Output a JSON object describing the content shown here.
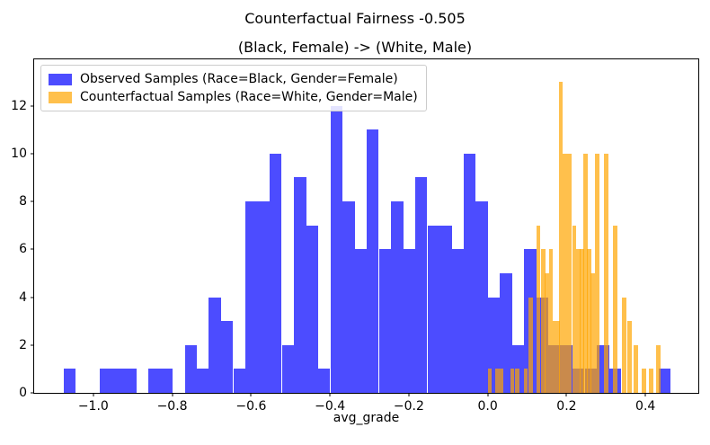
{
  "chart_data": {
    "type": "histogram",
    "title": "Counterfactual Fairness -0.505",
    "axes_title": "(Black, Female) -> (White, Male)",
    "xlabel": "avg_grade",
    "ylabel": "",
    "grid": false,
    "legend_position": "upper left",
    "xlim": [
      -1.15,
      0.534
    ],
    "ylim": [
      0,
      13.94
    ],
    "xticks": [
      {
        "value": -1.0,
        "label": "−1.0"
      },
      {
        "value": -0.8,
        "label": "−0.8"
      },
      {
        "value": -0.6,
        "label": "−0.6"
      },
      {
        "value": -0.4,
        "label": "−0.4"
      },
      {
        "value": -0.2,
        "label": "−0.2"
      },
      {
        "value": 0.0,
        "label": "0.0"
      },
      {
        "value": 0.2,
        "label": "0.2"
      },
      {
        "value": 0.4,
        "label": "0.4"
      }
    ],
    "yticks": [
      {
        "value": 0,
        "label": "0"
      },
      {
        "value": 2,
        "label": "2"
      },
      {
        "value": 4,
        "label": "4"
      },
      {
        "value": 6,
        "label": "6"
      },
      {
        "value": 8,
        "label": "8"
      },
      {
        "value": 10,
        "label": "10"
      },
      {
        "value": 12,
        "label": "12"
      }
    ],
    "series": [
      {
        "name": "Observed Samples (Race=Black, Gender=Female)",
        "color": "#0000FF",
        "alpha": 0.7,
        "css_fill": "#4C4CFF",
        "legend_swatch": "#4C4CFF",
        "bin_width": 0.0307,
        "bars": [
          [
            -1.075,
            1
          ],
          [
            -0.983,
            1
          ],
          [
            -0.952,
            1
          ],
          [
            -0.921,
            1
          ],
          [
            -0.86,
            1
          ],
          [
            -0.829,
            1
          ],
          [
            -0.768,
            2
          ],
          [
            -0.737,
            1
          ],
          [
            -0.707,
            4
          ],
          [
            -0.676,
            3
          ],
          [
            -0.645,
            1
          ],
          [
            -0.614,
            8
          ],
          [
            -0.584,
            8
          ],
          [
            -0.553,
            10
          ],
          [
            -0.522,
            2
          ],
          [
            -0.491,
            9
          ],
          [
            -0.461,
            7
          ],
          [
            -0.43,
            1
          ],
          [
            -0.399,
            12
          ],
          [
            -0.368,
            8
          ],
          [
            -0.338,
            6
          ],
          [
            -0.307,
            11
          ],
          [
            -0.276,
            6
          ],
          [
            -0.245,
            8
          ],
          [
            -0.215,
            6
          ],
          [
            -0.184,
            9
          ],
          [
            -0.153,
            7
          ],
          [
            -0.122,
            7
          ],
          [
            -0.092,
            6
          ],
          [
            -0.061,
            10
          ],
          [
            -0.03,
            8
          ],
          [
            0.001,
            4
          ],
          [
            0.031,
            5
          ],
          [
            0.062,
            2
          ],
          [
            0.093,
            6
          ],
          [
            0.123,
            4
          ],
          [
            0.154,
            2
          ],
          [
            0.185,
            2
          ],
          [
            0.215,
            1
          ],
          [
            0.246,
            1
          ],
          [
            0.277,
            2
          ],
          [
            0.307,
            1
          ],
          [
            0.433,
            1
          ]
        ]
      },
      {
        "name": "Counterfactual Samples (Race=White, Gender=Male)",
        "color": "#FFA500",
        "alpha": 0.7,
        "css_fill": "rgba(255,165,0,0.7)",
        "legend_swatch": "#FFC04C",
        "bin_width": 0.0107,
        "bars": [
          [
            0.0,
            1
          ],
          [
            0.018,
            1
          ],
          [
            0.029,
            1
          ],
          [
            0.057,
            1
          ],
          [
            0.07,
            1
          ],
          [
            0.091,
            1
          ],
          [
            0.104,
            4
          ],
          [
            0.123,
            7
          ],
          [
            0.136,
            6
          ],
          [
            0.145,
            5
          ],
          [
            0.155,
            6
          ],
          [
            0.164,
            3
          ],
          [
            0.173,
            3
          ],
          [
            0.18,
            13
          ],
          [
            0.191,
            10
          ],
          [
            0.201,
            10
          ],
          [
            0.214,
            7
          ],
          [
            0.225,
            6
          ],
          [
            0.234,
            6
          ],
          [
            0.243,
            10
          ],
          [
            0.252,
            6
          ],
          [
            0.261,
            5
          ],
          [
            0.273,
            10
          ],
          [
            0.295,
            10
          ],
          [
            0.318,
            7
          ],
          [
            0.341,
            4
          ],
          [
            0.354,
            3
          ],
          [
            0.37,
            2
          ],
          [
            0.391,
            1
          ],
          [
            0.409,
            1
          ],
          [
            0.427,
            2
          ]
        ]
      }
    ]
  }
}
